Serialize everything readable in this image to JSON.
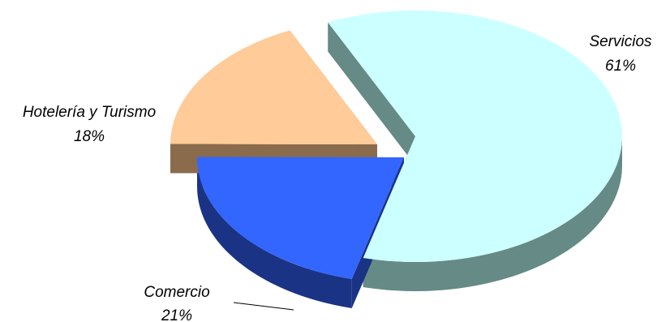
{
  "chart_data": {
    "type": "pie",
    "title": "",
    "slices": [
      {
        "label": "Servicios",
        "percent_label": "61%",
        "value": 61,
        "top_color": "#CCFFFF",
        "side_color": "#668A85"
      },
      {
        "label": "Comercio",
        "percent_label": "21%",
        "value": 21,
        "top_color": "#3366FF",
        "side_color": "#1A3385"
      },
      {
        "label": "Hotelería y Turismo",
        "percent_label": "18%",
        "value": 18,
        "top_color": "#FFCC99",
        "side_color": "#8A6B4C"
      }
    ],
    "style": "3d-exploded",
    "legend": "none"
  }
}
